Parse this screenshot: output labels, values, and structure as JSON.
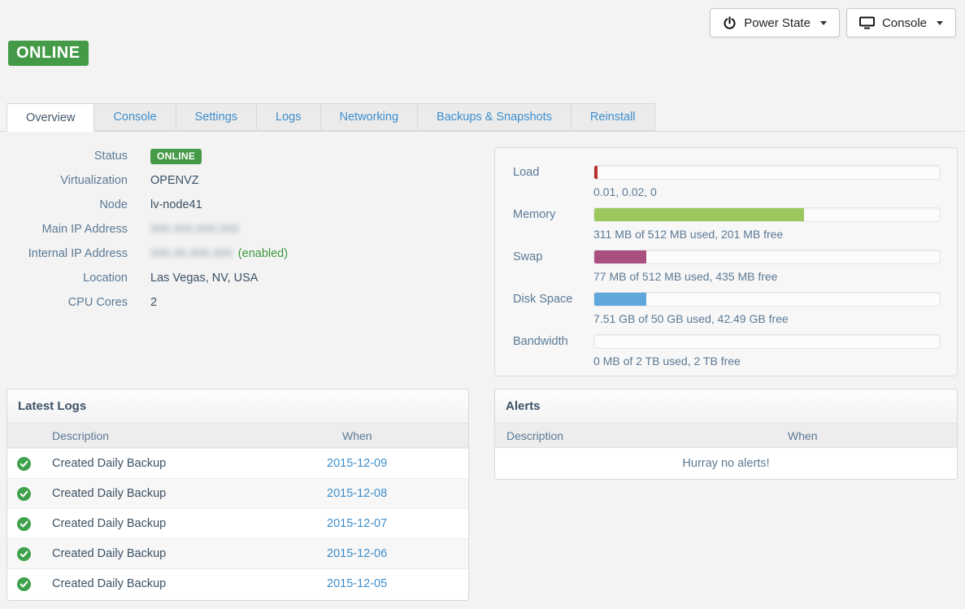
{
  "colors": {
    "badge_green": "#459a48",
    "check_green": "#3fa14b",
    "link_blue": "#3e8ecc"
  },
  "status_banner": {
    "label": "ONLINE"
  },
  "toolbar": {
    "power_button": {
      "label": "Power State"
    },
    "console_button": {
      "label": "Console"
    }
  },
  "tabs": {
    "items": [
      {
        "label": "Overview",
        "active": true
      },
      {
        "label": "Console",
        "active": false
      },
      {
        "label": "Settings",
        "active": false
      },
      {
        "label": "Logs",
        "active": false
      },
      {
        "label": "Networking",
        "active": false
      },
      {
        "label": "Backups & Snapshots",
        "active": false
      },
      {
        "label": "Reinstall",
        "active": false
      }
    ]
  },
  "info": {
    "rows": [
      {
        "label": "Status",
        "badge": "ONLINE"
      },
      {
        "label": "Virtualization",
        "value": "OPENVZ"
      },
      {
        "label": "Node",
        "value": "lv-node41"
      },
      {
        "label": "Main IP Address",
        "redacted_text": "000.000.000.000"
      },
      {
        "label": "Internal IP Address",
        "redacted_text": "000.00.000.000",
        "suffix": "(enabled)"
      },
      {
        "label": "Location",
        "value": "Las Vegas, NV, USA"
      },
      {
        "label": "CPU Cores",
        "value": "2"
      }
    ]
  },
  "resources": {
    "items": [
      {
        "label": "Load",
        "percent": 1,
        "color": "#b8312f",
        "caption": "0.01, 0.02, 0"
      },
      {
        "label": "Memory",
        "percent": 60.7,
        "color": "#9cc75f",
        "caption": "311 MB of 512 MB used, 201 MB free"
      },
      {
        "label": "Swap",
        "percent": 15,
        "color": "#aa5081",
        "caption": "77 MB of 512 MB used, 435 MB free"
      },
      {
        "label": "Disk Space",
        "percent": 15,
        "color": "#5fa8dc",
        "caption": "7.51 GB of 50 GB used, 42.49 GB free"
      },
      {
        "label": "Bandwidth",
        "percent": 0,
        "color": "#5fa8dc",
        "caption": "0 MB of 2 TB used, 2 TB free"
      }
    ]
  },
  "logs": {
    "title": "Latest Logs",
    "columns": {
      "description": "Description",
      "when": "When"
    },
    "rows": [
      {
        "description": "Created Daily Backup",
        "when": "2015-12-09"
      },
      {
        "description": "Created Daily Backup",
        "when": "2015-12-08"
      },
      {
        "description": "Created Daily Backup",
        "when": "2015-12-07"
      },
      {
        "description": "Created Daily Backup",
        "when": "2015-12-06"
      },
      {
        "description": "Created Daily Backup",
        "when": "2015-12-05"
      }
    ]
  },
  "alerts": {
    "title": "Alerts",
    "columns": {
      "description": "Description",
      "when": "When"
    },
    "empty_message": "Hurray no alerts!"
  }
}
